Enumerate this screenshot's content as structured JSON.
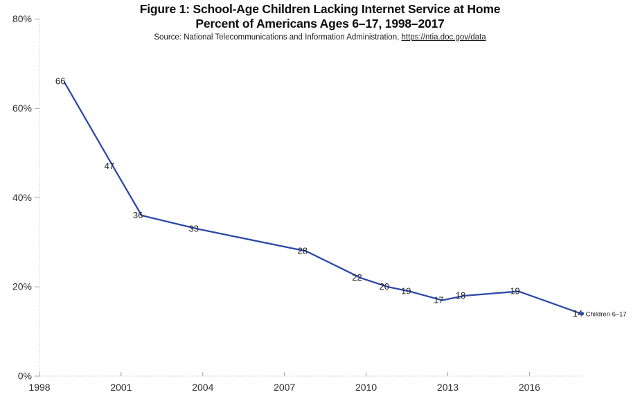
{
  "header": {
    "title": "Figure 1: School-Age Children Lacking Internet Service at Home",
    "subtitle": "Percent of Americans Ages 6–17, 1998–2017",
    "source_prefix": "Source: National Telecommunications and Information Administration, ",
    "source_link_text": "https://ntia.doc.gov/data"
  },
  "chart_data": {
    "type": "line",
    "title": "Figure 1: School-Age Children Lacking Internet Service at Home",
    "subtitle": "Percent of Americans Ages 6–17, 1998–2017",
    "source": "Source: National Telecommunications and Information Administration, https://ntia.doc.gov/data",
    "xlabel": "",
    "ylabel": "",
    "xlim": [
      1998,
      2018
    ],
    "ylim": [
      0,
      80
    ],
    "grid": false,
    "legend_position": "end-of-line",
    "colors": {
      "line": "#2b49a8",
      "axis": "#c9c9c9",
      "tick": "#a0a0a0",
      "text": "#2b2b2b"
    },
    "x_ticks": [
      {
        "value": 1998,
        "label": "1998"
      },
      {
        "value": 2001,
        "label": "2001"
      },
      {
        "value": 2004,
        "label": "2004"
      },
      {
        "value": 2007,
        "label": "2007"
      },
      {
        "value": 2010,
        "label": "2010"
      },
      {
        "value": 2013,
        "label": "2013"
      },
      {
        "value": 2016,
        "label": "2016"
      }
    ],
    "y_ticks": [
      {
        "value": 0,
        "label": "0%"
      },
      {
        "value": 20,
        "label": "20%"
      },
      {
        "value": 40,
        "label": "40%"
      },
      {
        "value": 60,
        "label": "60%"
      },
      {
        "value": 80,
        "label": "80%"
      }
    ],
    "series": [
      {
        "name": "Children 6–17",
        "color": "#2b49a8",
        "points": [
          {
            "x": 1998.9,
            "y": 66,
            "label": "66"
          },
          {
            "x": 2000.7,
            "y": 47,
            "label": "47"
          },
          {
            "x": 2001.75,
            "y": 36,
            "label": "36"
          },
          {
            "x": 2003.8,
            "y": 33,
            "label": "33"
          },
          {
            "x": 2007.8,
            "y": 28,
            "label": "28"
          },
          {
            "x": 2009.8,
            "y": 22,
            "label": "22"
          },
          {
            "x": 2010.8,
            "y": 20,
            "label": "20"
          },
          {
            "x": 2011.6,
            "y": 19,
            "label": "19"
          },
          {
            "x": 2012.8,
            "y": 17,
            "label": "17"
          },
          {
            "x": 2013.6,
            "y": 18,
            "label": "18"
          },
          {
            "x": 2015.6,
            "y": 19,
            "label": "19"
          },
          {
            "x": 2017.9,
            "y": 14,
            "label": "14"
          }
        ]
      }
    ]
  }
}
